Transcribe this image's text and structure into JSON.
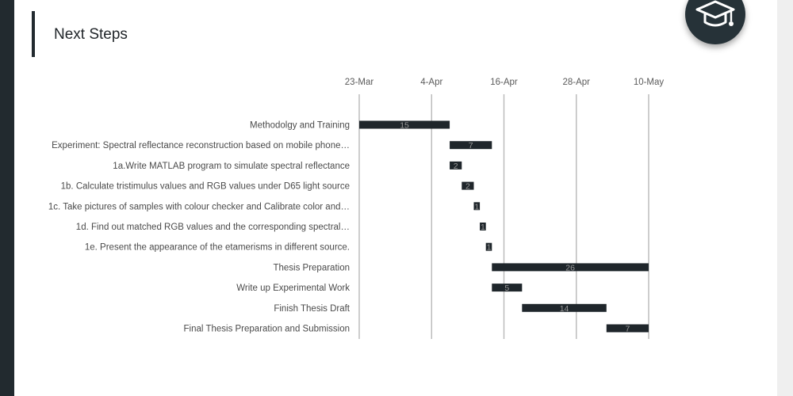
{
  "slide": {
    "title": "Next Steps"
  },
  "icons": {
    "badge": "graduation-cap-icon"
  },
  "colors": {
    "bar": "#1f262b",
    "sidebar": "#222a2f",
    "grid": "#b8b8b8"
  },
  "chart_data": {
    "type": "bar",
    "orientation": "horizontal-gantt",
    "x_axis": {
      "type": "date",
      "ticks": [
        "23-Mar",
        "4-Apr",
        "16-Apr",
        "28-Apr",
        "10-May"
      ],
      "position": "top",
      "grid": true
    },
    "tasks": [
      {
        "label": "Methodolgy and Training",
        "start": "23-Mar",
        "duration": 15
      },
      {
        "label": "Experiment: Spectral reflectance reconstruction based on mobile phone…",
        "start": "7-Apr",
        "duration": 7
      },
      {
        "label": "1a.Write MATLAB program to simulate spectral reflectance",
        "start": "7-Apr",
        "duration": 2
      },
      {
        "label": "1b. Calculate tristimulus values and RGB values under D65 light source",
        "start": "9-Apr",
        "duration": 2
      },
      {
        "label": "1c. Take pictures of samples with colour checker and Calibrate color and…",
        "start": "11-Apr",
        "duration": 1
      },
      {
        "label": "1d. Find out matched RGB values and the corresponding spectral…",
        "start": "12-Apr",
        "duration": 1
      },
      {
        "label": "1e. Present the appearance of the etamerisms in different source.",
        "start": "13-Apr",
        "duration": 1
      },
      {
        "label": "Thesis Preparation",
        "start": "14-Apr",
        "duration": 26
      },
      {
        "label": "Write up Experimental Work",
        "start": "14-Apr",
        "duration": 5
      },
      {
        "label": "Finish Thesis Draft",
        "start": "19-Apr",
        "duration": 14
      },
      {
        "label": "Final Thesis Preparation and Submission",
        "start": "3-May",
        "duration": 7
      }
    ]
  }
}
